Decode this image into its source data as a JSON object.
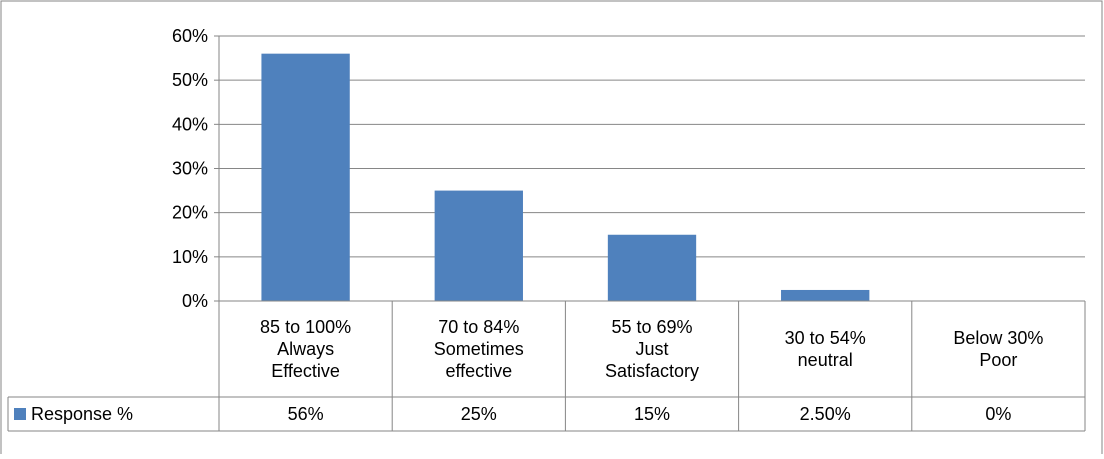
{
  "chart_data": {
    "type": "bar",
    "categories": [
      [
        "85 to 100%",
        "Always",
        "Effective"
      ],
      [
        "70 to 84%",
        "Sometimes",
        "effective"
      ],
      [
        "55 to 69%",
        "Just",
        "Satisfactory"
      ],
      [
        "30 to 54%",
        "neutral"
      ],
      [
        "Below 30%",
        "Poor"
      ]
    ],
    "series": [
      {
        "name": "Response %",
        "values": [
          56,
          25,
          15,
          2.5,
          0
        ],
        "value_labels": [
          "56%",
          "25%",
          "15%",
          "2.50%",
          "0%"
        ],
        "color": "#4f81bd"
      }
    ],
    "ylim": [
      0,
      60
    ],
    "yticks": [
      "0%",
      "10%",
      "20%",
      "30%",
      "40%",
      "50%",
      "60%"
    ],
    "grid": true,
    "legend": "data-table-left",
    "data_table": true
  }
}
